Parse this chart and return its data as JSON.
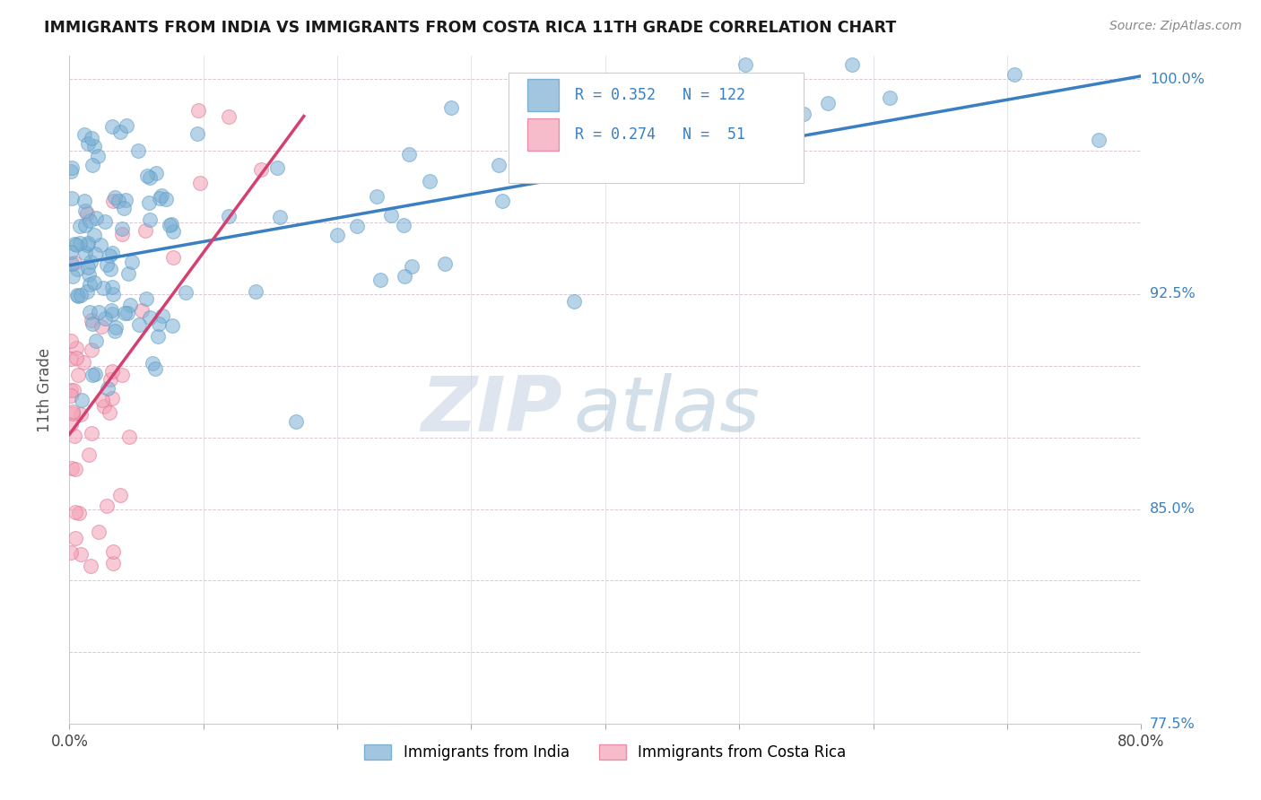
{
  "title": "IMMIGRANTS FROM INDIA VS IMMIGRANTS FROM COSTA RICA 11TH GRADE CORRELATION CHART",
  "source": "Source: ZipAtlas.com",
  "ylabel": "11th Grade",
  "xlim": [
    0.0,
    0.8
  ],
  "ylim": [
    0.775,
    1.008
  ],
  "series_india": {
    "label": "Immigrants from India",
    "color": "#7bafd4",
    "edge_color": "#5a9cc5",
    "R": 0.352,
    "N": 122
  },
  "series_costa_rica": {
    "label": "Immigrants from Costa Rica",
    "color": "#f4a0b5",
    "edge_color": "#e07090",
    "R": 0.274,
    "N": 51
  },
  "watermark_zip": "ZIP",
  "watermark_atlas": "atlas",
  "background_color": "#ffffff",
  "trend_india_color": "#3a7fc1",
  "trend_cr_color": "#d44070",
  "trend_india_x0": 0.0,
  "trend_india_y0": 0.935,
  "trend_india_x1": 0.8,
  "trend_india_y1": 1.001,
  "trend_cr_x0": 0.0,
  "trend_cr_y0": 0.876,
  "trend_cr_x1": 0.175,
  "trend_cr_y1": 0.987,
  "ytick_positions": [
    0.775,
    0.8,
    0.825,
    0.85,
    0.875,
    0.9,
    0.925,
    0.95,
    0.975,
    1.0
  ],
  "ytick_labels_right": [
    "77.5%",
    "",
    "",
    "85.0%",
    "",
    "",
    "92.5%",
    "",
    "",
    "100.0%"
  ],
  "xtick_positions": [
    0.0,
    0.1,
    0.2,
    0.3,
    0.4,
    0.5,
    0.6,
    0.7,
    0.8
  ],
  "xtick_labels": [
    "0.0%",
    "",
    "",
    "",
    "",
    "",
    "",
    "",
    "80.0%"
  ]
}
